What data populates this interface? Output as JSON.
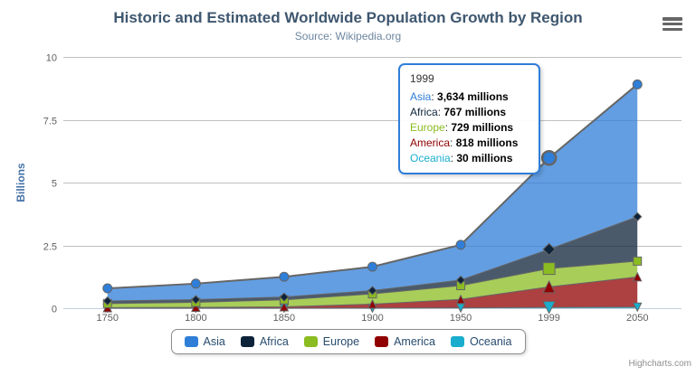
{
  "chart": {
    "title": "Historic and Estimated Worldwide Population Growth by Region",
    "subtitle": "Source: Wikipedia.org",
    "y_axis_title": "Billions",
    "credits": "Highcharts.com"
  },
  "tooltip": {
    "header": "1999",
    "border_color": "#2f7ed8",
    "rows": [
      {
        "name": "Asia",
        "value": "3,634 millions",
        "color": "#2f7ed8"
      },
      {
        "name": "Africa",
        "value": "767 millions",
        "color": "#0d233a"
      },
      {
        "name": "Europe",
        "value": "729 millions",
        "color": "#8bbc21"
      },
      {
        "name": "America",
        "value": "818 millions",
        "color": "#910000"
      },
      {
        "name": "Oceania",
        "value": "30 millions",
        "color": "#1aadce"
      }
    ]
  },
  "chart_data": {
    "type": "area",
    "stacked": true,
    "title": "Historic and Estimated Worldwide Population Growth by Region",
    "subtitle": "Source: Wikipedia.org",
    "categories": [
      "1750",
      "1800",
      "1850",
      "1900",
      "1950",
      "1999",
      "2050"
    ],
    "series": [
      {
        "name": "Asia",
        "color": "#2f7ed8",
        "marker": "circle",
        "values": [
          502,
          635,
          809,
          947,
          1402,
          3634,
          5268
        ]
      },
      {
        "name": "Africa",
        "color": "#0d233a",
        "marker": "diamond",
        "values": [
          106,
          107,
          111,
          133,
          221,
          767,
          1766
        ]
      },
      {
        "name": "Europe",
        "color": "#8bbc21",
        "marker": "square",
        "values": [
          163,
          203,
          276,
          408,
          547,
          729,
          628
        ]
      },
      {
        "name": "America",
        "color": "#910000",
        "marker": "triangle",
        "values": [
          18,
          31,
          54,
          156,
          339,
          818,
          1201
        ]
      },
      {
        "name": "Oceania",
        "color": "#1aadce",
        "marker": "triangle-down",
        "values": [
          2,
          2,
          2,
          6,
          13,
          30,
          46
        ]
      }
    ],
    "unit": "millions",
    "xlabel": "",
    "ylabel": "Billions",
    "ylim": [
      0,
      10
    ],
    "yticks": [
      "0",
      "2.5",
      "5",
      "7.5",
      "10"
    ],
    "grid": true,
    "legend_position": "bottom",
    "hover_index": 5,
    "style": {
      "fill_opacity": 0.75,
      "line_color": "#666666",
      "grid_color": "#C0C0C0",
      "axis_line_color": "#C0D0E0"
    }
  }
}
